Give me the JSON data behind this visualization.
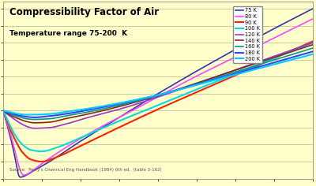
{
  "title": "Compressibility Factor of Air",
  "subtitle": "Temperature range 75-200  K",
  "source": "Source:  Perry's Chemical Eng Handbook (1984) 6th ed.  (table 3-162)",
  "xlim": [
    0,
    200
  ],
  "ylim": [
    0,
    2.6
  ],
  "background_color": "#FFFFCC",
  "grid_color": "#CCCC99",
  "temperatures": [
    75,
    80,
    90,
    100,
    120,
    140,
    160,
    180,
    200
  ],
  "colors": {
    "75": "#FF0000",
    "80": "#FF44FF",
    "90": "#00CCFF",
    "100": "#FF0066",
    "120": "#9933CC",
    "140": "#882222",
    "160": "#009988",
    "180": "#3344FF",
    "200": "#00CCFF"
  },
  "legend_labels": [
    "75 K",
    "80 K",
    "90 K",
    "100 K",
    "120 K",
    "140 K",
    "160 K",
    "180 K",
    "200 K"
  ],
  "legend_colors": [
    "#3333AA",
    "#FF44FF",
    "#FF2200",
    "#00DDDD",
    "#9933CC",
    "#882222",
    "#009988",
    "#3344FF",
    "#00CCFF"
  ]
}
